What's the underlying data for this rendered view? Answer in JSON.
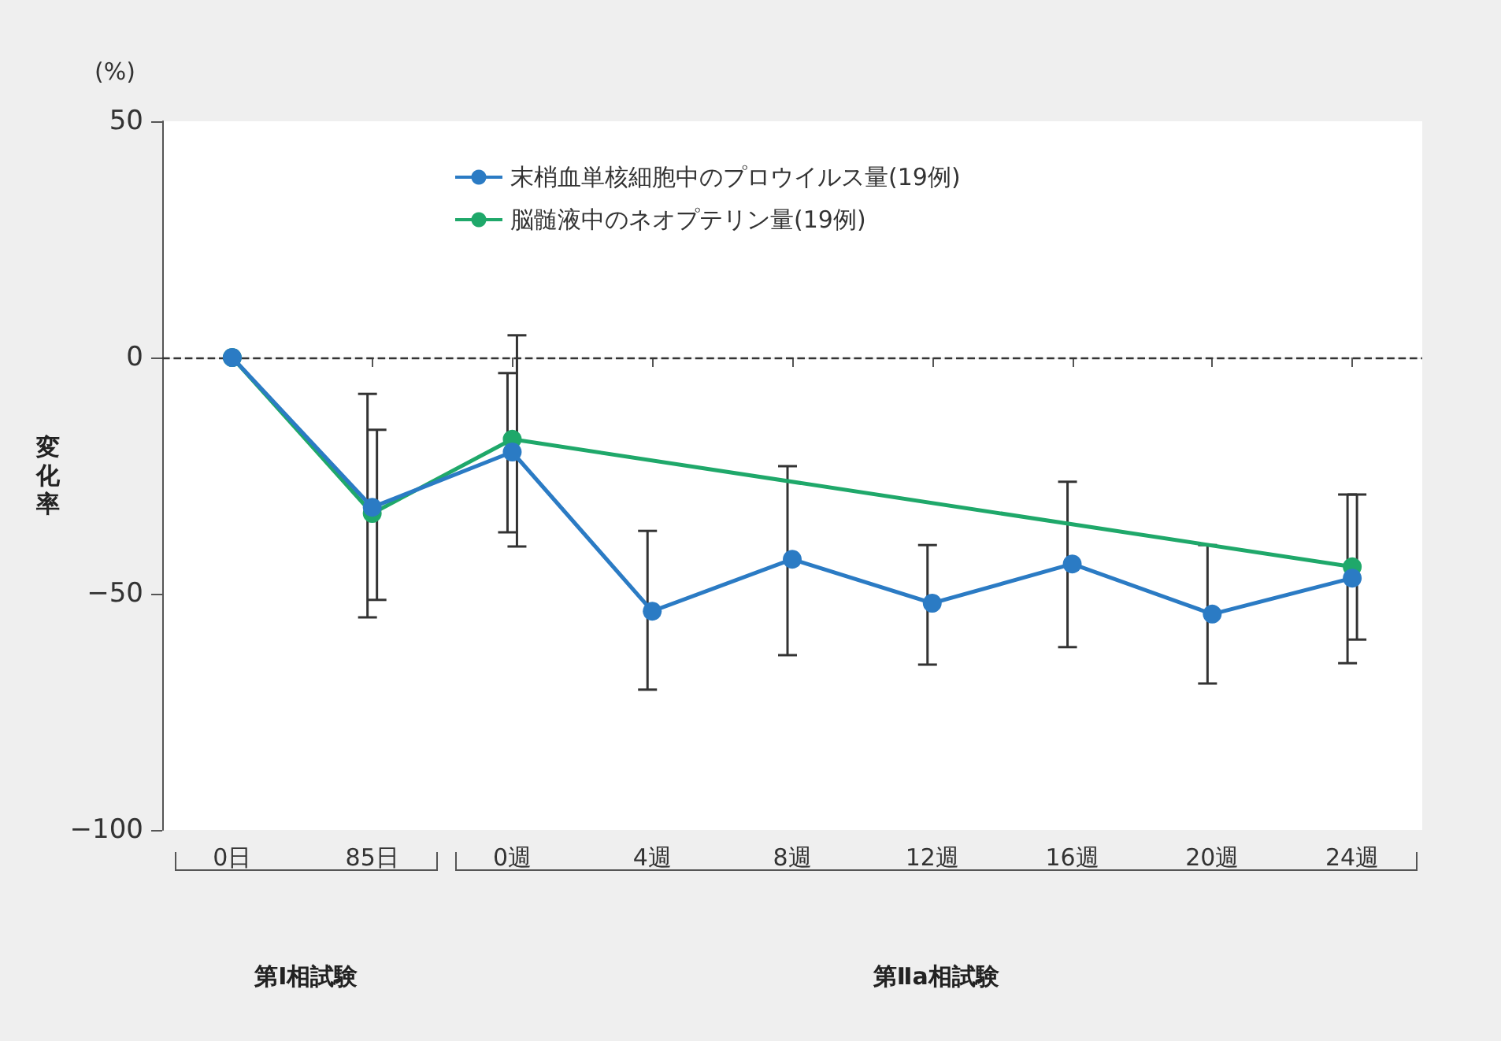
{
  "chart_data": {
    "type": "line",
    "ylabel": "変化率",
    "categories": [
      "0日",
      "85日",
      "0週",
      "4週",
      "8週",
      "12週",
      "16週",
      "20週",
      "24週"
    ],
    "series": [
      {
        "name": "末梢血単核細胞中のプロウイルス量(19例)",
        "color": "#2b7bc4",
        "values": [
          0,
          -31.7,
          -20,
          -53.7,
          -42.7,
          -52,
          -43.7,
          -54.3,
          -46.7
        ],
        "errors": [
          null,
          [
            -55,
            -7.7
          ],
          [
            -37,
            -3.3
          ],
          [
            -70.3,
            -36.7
          ],
          [
            -63,
            -23
          ],
          [
            -65,
            -39.7
          ],
          [
            -61.3,
            -26.3
          ],
          [
            -69,
            -39.7
          ],
          [
            -64.7,
            -29
          ]
        ]
      },
      {
        "name": "脳髄液中のネオプテリン量(19例)",
        "color": "#1fa86a",
        "values": [
          0,
          -33,
          -17.3,
          null,
          null,
          null,
          null,
          null,
          -44.3
        ],
        "errors": [
          null,
          [
            -51.3,
            -15.3
          ],
          [
            -40,
            4.7
          ],
          null,
          null,
          null,
          null,
          null,
          [
            -59.7,
            -29
          ]
        ]
      }
    ],
    "ylim": [
      -100,
      50
    ],
    "yticks": [
      -100,
      -50,
      0,
      50
    ],
    "grid": false,
    "legend": "top",
    "marker": "circle",
    "line_style": "solid",
    "ref_lines": [
      {
        "axis": "y",
        "value": 0,
        "line_style": "dashed",
        "color": "#333333"
      }
    ],
    "annotations": [
      "(%)",
      "第Ⅰ相試験",
      "第Ⅱa相試験"
    ]
  }
}
